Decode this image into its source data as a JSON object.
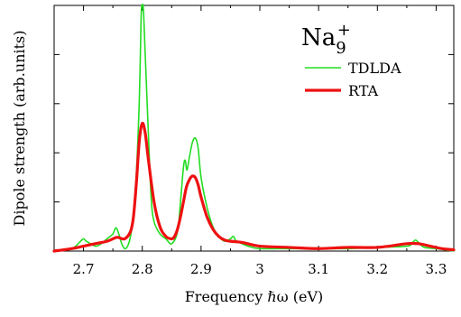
{
  "chart_data": {
    "type": "line",
    "annotation": {
      "base": "Na",
      "subscript": "9",
      "superscript": "+"
    },
    "xlabel": "Frequency ℏω  (eV)",
    "ylabel": "Dipole strength  (arb.units)",
    "xlim": [
      2.65,
      3.33
    ],
    "ylim": [
      0,
      1.0
    ],
    "x_ticks": [
      "2.7",
      "2.8",
      "2.9",
      "3",
      "3.1",
      "3.2",
      "3.3"
    ],
    "x_tick_values": [
      2.7,
      2.8,
      2.9,
      3.0,
      3.1,
      3.2,
      3.3
    ],
    "y_ticks": [
      0.2,
      0.4,
      0.6,
      0.8
    ],
    "y_tick_labels_shown": false,
    "legend_position": "top-right",
    "series": [
      {
        "name": "TDLDA",
        "color": "#22dd22",
        "linewidth": "thin",
        "x": [
          2.65,
          2.68,
          2.695,
          2.7,
          2.705,
          2.72,
          2.73,
          2.74,
          2.75,
          2.755,
          2.76,
          2.765,
          2.77,
          2.775,
          2.78,
          2.785,
          2.79,
          2.795,
          2.798,
          2.8,
          2.802,
          2.805,
          2.81,
          2.815,
          2.82,
          2.83,
          2.84,
          2.85,
          2.86,
          2.865,
          2.87,
          2.873,
          2.876,
          2.88,
          2.885,
          2.89,
          2.895,
          2.9,
          2.91,
          2.92,
          2.93,
          2.94,
          2.95,
          2.955,
          2.96,
          2.97,
          2.98,
          3.0,
          3.05,
          3.1,
          3.15,
          3.2,
          3.25,
          3.26,
          3.265,
          3.27,
          3.28,
          3.3,
          3.33
        ],
        "y": [
          0.0,
          0.01,
          0.04,
          0.05,
          0.04,
          0.02,
          0.03,
          0.05,
          0.07,
          0.095,
          0.07,
          0.03,
          0.01,
          0.02,
          0.06,
          0.15,
          0.32,
          0.62,
          0.95,
          1.04,
          0.98,
          0.8,
          0.5,
          0.22,
          0.12,
          0.07,
          0.05,
          0.03,
          0.08,
          0.2,
          0.34,
          0.37,
          0.33,
          0.38,
          0.44,
          0.46,
          0.42,
          0.3,
          0.18,
          0.1,
          0.06,
          0.04,
          0.05,
          0.06,
          0.04,
          0.03,
          0.02,
          0.01,
          0.01,
          0.01,
          0.01,
          0.015,
          0.02,
          0.035,
          0.045,
          0.035,
          0.015,
          0.01,
          0.0
        ]
      },
      {
        "name": "RTA",
        "color": "#ee1111",
        "linewidth": "thick",
        "x": [
          2.65,
          2.68,
          2.7,
          2.72,
          2.74,
          2.755,
          2.76,
          2.77,
          2.78,
          2.785,
          2.79,
          2.795,
          2.8,
          2.805,
          2.81,
          2.82,
          2.83,
          2.84,
          2.85,
          2.855,
          2.86,
          2.865,
          2.87,
          2.875,
          2.88,
          2.885,
          2.89,
          2.895,
          2.9,
          2.91,
          2.92,
          2.93,
          2.94,
          2.95,
          2.97,
          3.0,
          3.05,
          3.1,
          3.15,
          3.2,
          3.25,
          3.27,
          3.29,
          3.31,
          3.33
        ],
        "y": [
          0.0,
          0.01,
          0.02,
          0.03,
          0.04,
          0.055,
          0.055,
          0.05,
          0.08,
          0.14,
          0.28,
          0.45,
          0.52,
          0.48,
          0.38,
          0.2,
          0.1,
          0.06,
          0.05,
          0.06,
          0.09,
          0.14,
          0.2,
          0.26,
          0.29,
          0.305,
          0.3,
          0.27,
          0.22,
          0.14,
          0.09,
          0.06,
          0.045,
          0.04,
          0.035,
          0.02,
          0.015,
          0.01,
          0.015,
          0.015,
          0.03,
          0.03,
          0.02,
          0.01,
          0.005
        ]
      }
    ]
  }
}
